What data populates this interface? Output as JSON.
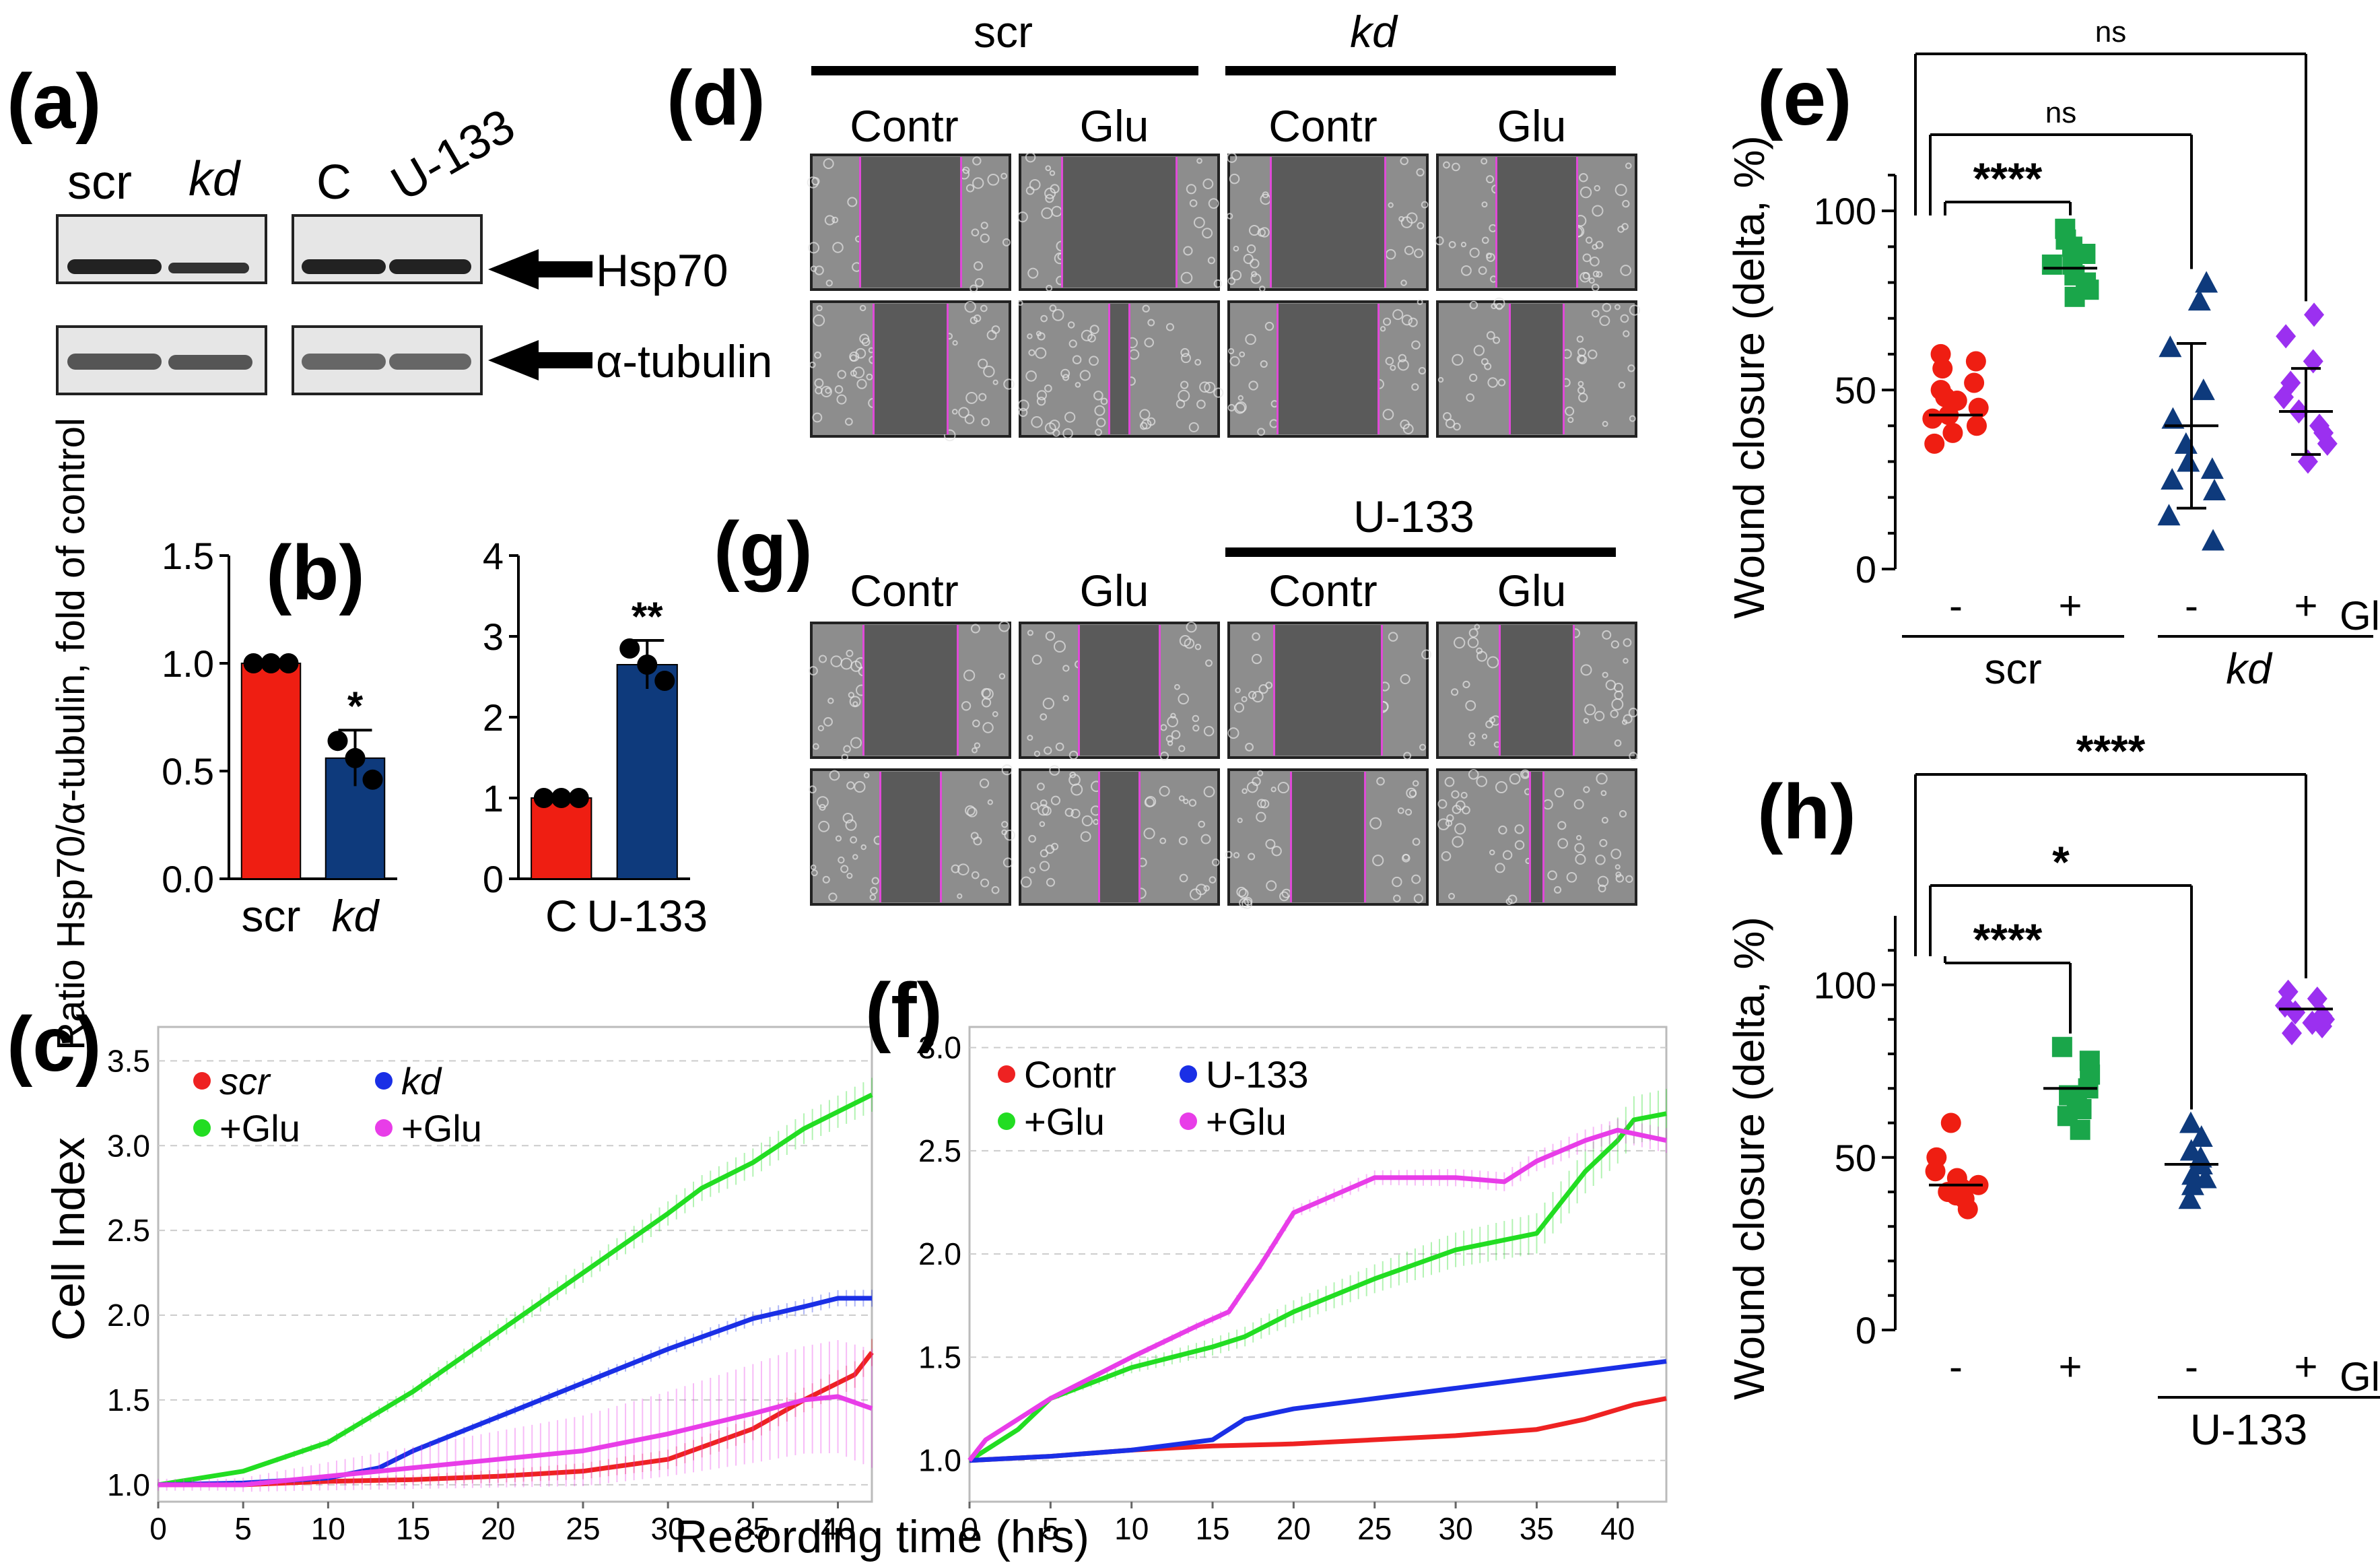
{
  "panel_letters": {
    "a": "(a)",
    "b": "(b)",
    "c": "(c)",
    "d": "(d)",
    "e": "(e)",
    "f": "(f)",
    "g": "(g)",
    "h": "(h)"
  },
  "panel_a": {
    "lanes_left": [
      "scr",
      "kd"
    ],
    "lanes_right": [
      "C",
      "U-133"
    ],
    "band_labels": [
      "Hsp70",
      "α-tubulin"
    ]
  },
  "panel_d": {
    "group_labels": [
      "scr",
      "kd"
    ],
    "col_labels": [
      "Contr",
      "Glu",
      "Contr",
      "Glu"
    ]
  },
  "panel_g": {
    "group_label": "U-133",
    "col_labels": [
      "Contr",
      "Glu",
      "Contr",
      "Glu"
    ]
  },
  "panel_c_f": {
    "xlabel": "Recording time (hrs)"
  },
  "colors": {
    "red": "#ef1e12",
    "blue": "#0e3a7c",
    "green": "#1aa64a",
    "purple": "#9b30f0",
    "c_green": "#22dd22",
    "c_blue": "#1a2fe6",
    "c_magenta": "#e83de8",
    "c_red": "#ee2222"
  },
  "chart_data": [
    {
      "id": "b1",
      "type": "bar",
      "title": "",
      "ylabel": "Ratio Hsp70/α-tubulin, fold of control",
      "categories": [
        "scr",
        "kd"
      ],
      "values": [
        1.0,
        0.56
      ],
      "errors": [
        0,
        0.13
      ],
      "points": [
        [
          1.0,
          1.0,
          1.0
        ],
        [
          0.64,
          0.56,
          0.46
        ]
      ],
      "ylim": [
        0,
        1.5
      ],
      "yticks": [
        "0.0",
        "0.5",
        "1.0",
        "1.5"
      ],
      "significance": [
        "",
        "*"
      ]
    },
    {
      "id": "b2",
      "type": "bar",
      "title": "",
      "categories": [
        "C",
        "U-133"
      ],
      "values": [
        1.0,
        2.65
      ],
      "errors": [
        0,
        0.3
      ],
      "points": [
        [
          1.0,
          1.0,
          1.0
        ],
        [
          2.85,
          2.65,
          2.45
        ]
      ],
      "ylim": [
        0,
        4
      ],
      "yticks": [
        "0",
        "1",
        "2",
        "3",
        "4"
      ],
      "significance": [
        "",
        "**"
      ]
    },
    {
      "id": "c",
      "type": "line",
      "xlabel": "Recording time (hrs)",
      "ylabel": "Cell Index",
      "xlim": [
        0,
        42
      ],
      "ylim": [
        0.9,
        3.7
      ],
      "xticks": [
        "0",
        "5",
        "10",
        "15",
        "20",
        "25",
        "30",
        "35",
        "40"
      ],
      "yticks": [
        "1.0",
        "1.5",
        "2.0",
        "2.5",
        "3.0",
        "3.5"
      ],
      "series": [
        {
          "name": "scr",
          "x": [
            0,
            5,
            10,
            15,
            20,
            25,
            30,
            35,
            38,
            41,
            42
          ],
          "y": [
            1.0,
            1.0,
            1.02,
            1.03,
            1.05,
            1.08,
            1.15,
            1.33,
            1.5,
            1.65,
            1.78
          ],
          "err": 0.08
        },
        {
          "name": "+Glu",
          "x": [
            0,
            5,
            10,
            15,
            20,
            25,
            30,
            32,
            35,
            38,
            40,
            42
          ],
          "y": [
            1.0,
            1.08,
            1.25,
            1.55,
            1.9,
            2.25,
            2.6,
            2.75,
            2.9,
            3.1,
            3.2,
            3.3
          ],
          "err": 0.1
        },
        {
          "name": "kd",
          "x": [
            0,
            5,
            10,
            13,
            15,
            20,
            25,
            30,
            35,
            38,
            40,
            42
          ],
          "y": [
            1.0,
            1.01,
            1.04,
            1.1,
            1.2,
            1.4,
            1.6,
            1.8,
            1.98,
            2.05,
            2.1,
            2.1
          ],
          "err": 0.05
        },
        {
          "name": "+Glu",
          "x": [
            0,
            5,
            10,
            15,
            20,
            25,
            30,
            35,
            38,
            40,
            42
          ],
          "y": [
            1.0,
            1.0,
            1.05,
            1.1,
            1.15,
            1.2,
            1.3,
            1.42,
            1.5,
            1.52,
            1.45
          ],
          "err": 0.35
        }
      ],
      "legend": [
        "scr",
        "kd",
        "+Glu",
        "+Glu"
      ]
    },
    {
      "id": "f",
      "type": "line",
      "xlabel": "Recording time (hrs)",
      "ylabel": "",
      "xlim": [
        0,
        43
      ],
      "ylim": [
        0.8,
        3.1
      ],
      "xticks": [
        "0",
        "5",
        "10",
        "15",
        "20",
        "25",
        "30",
        "35",
        "40"
      ],
      "yticks": [
        "1.0",
        "1.5",
        "2.0",
        "2.5",
        "3.0"
      ],
      "series": [
        {
          "name": "Contr",
          "x": [
            0,
            5,
            10,
            15,
            20,
            25,
            30,
            35,
            38,
            41,
            43
          ],
          "y": [
            1.0,
            1.02,
            1.05,
            1.07,
            1.08,
            1.1,
            1.12,
            1.15,
            1.2,
            1.27,
            1.3
          ],
          "err": 0.02
        },
        {
          "name": "+Glu",
          "x": [
            0,
            1,
            3,
            5,
            10,
            15,
            17,
            20,
            25,
            30,
            35,
            38,
            40,
            41,
            43
          ],
          "y": [
            1.0,
            1.05,
            1.15,
            1.3,
            1.45,
            1.55,
            1.6,
            1.72,
            1.88,
            2.02,
            2.1,
            2.4,
            2.55,
            2.65,
            2.68
          ],
          "err": 0.12
        },
        {
          "name": "U-133",
          "x": [
            0,
            5,
            10,
            15,
            17,
            20,
            25,
            30,
            35,
            40,
            43
          ],
          "y": [
            1.0,
            1.02,
            1.05,
            1.1,
            1.2,
            1.25,
            1.3,
            1.35,
            1.4,
            1.45,
            1.48
          ],
          "err": 0.02
        },
        {
          "name": "+Glu",
          "x": [
            0,
            1,
            5,
            10,
            14,
            16,
            18,
            20,
            25,
            30,
            33,
            35,
            38,
            40,
            43
          ],
          "y": [
            1.0,
            1.1,
            1.3,
            1.5,
            1.65,
            1.72,
            1.95,
            2.2,
            2.37,
            2.37,
            2.35,
            2.45,
            2.55,
            2.6,
            2.55
          ],
          "err": 0.06
        }
      ],
      "legend": [
        "Contr",
        "U-133",
        "+Glu",
        "+Glu"
      ]
    },
    {
      "id": "e",
      "type": "scatter",
      "ylabel": "Wound closure (delta, %)",
      "ylim": [
        0,
        110
      ],
      "yticks": [
        "0",
        "50",
        "100"
      ],
      "categories": [
        "-",
        "+",
        "-",
        "+"
      ],
      "x_factor": "Glu",
      "groups": [
        "scr",
        "kd"
      ],
      "means": [
        43,
        84,
        40,
        44
      ],
      "sd": [
        0,
        0,
        23,
        12
      ],
      "points": [
        [
          35,
          40,
          43,
          45,
          47,
          50,
          52,
          56,
          58,
          60,
          38,
          42,
          48
        ],
        [
          76,
          80,
          82,
          85,
          88,
          90,
          92,
          95,
          85,
          78
        ],
        [
          8,
          15,
          22,
          28,
          35,
          42,
          50,
          62,
          75,
          80,
          30,
          25
        ],
        [
          30,
          35,
          40,
          44,
          48,
          52,
          58,
          65,
          71,
          38
        ]
      ],
      "significance": [
        {
          "label": "****",
          "from": 0,
          "to": 1
        },
        {
          "label": "ns",
          "from": 0,
          "to": 2
        },
        {
          "label": "ns",
          "from": 0,
          "to": 3
        }
      ]
    },
    {
      "id": "h",
      "type": "scatter",
      "ylabel": "Wound closure (delta, %)",
      "ylim": [
        0,
        120
      ],
      "yticks": [
        "0",
        "50",
        "100"
      ],
      "categories": [
        "-",
        "+",
        "-",
        "+"
      ],
      "x_factor": "Glu",
      "groups": [
        "U-133"
      ],
      "means": [
        42,
        70,
        48,
        93
      ],
      "sd": [
        0,
        0,
        0,
        0
      ],
      "points": [
        [
          35,
          38,
          40,
          42,
          44,
          46,
          50,
          60,
          41,
          39
        ],
        [
          58,
          62,
          66,
          70,
          74,
          78,
          82,
          68,
          64
        ],
        [
          38,
          42,
          45,
          48,
          52,
          56,
          60,
          44,
          50
        ],
        [
          86,
          88,
          90,
          92,
          94,
          96,
          98,
          91,
          89
        ]
      ],
      "significance": [
        {
          "label": "****",
          "from": 0,
          "to": 1
        },
        {
          "label": "*",
          "from": 0,
          "to": 2
        },
        {
          "label": "****",
          "from": 0,
          "to": 3
        }
      ]
    }
  ]
}
